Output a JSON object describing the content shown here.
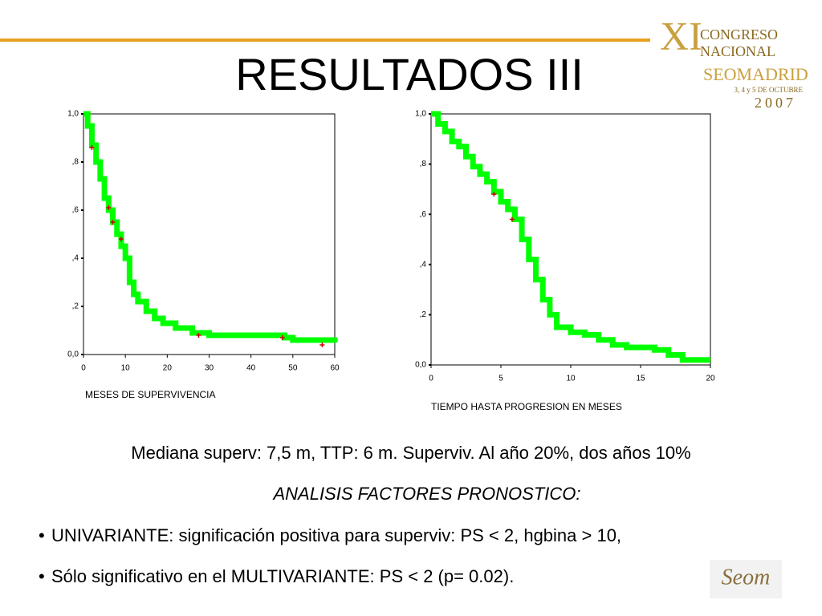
{
  "title": "RESULTADOS III",
  "logo": {
    "mark": "XI",
    "line1": "CONGRESO",
    "line2": "NACIONAL",
    "line3": "SEOMADRID",
    "line4": "3, 4 y 5 DE OCTUBRE",
    "line5": "2007"
  },
  "body": {
    "line1": "Mediana superv: 7,5 m, TTP: 6 m.  Superviv. Al año 20%,  dos años 10%",
    "line2": "ANALISIS FACTORES PRONOSTICO:",
    "bullets": [
      "UNIVARIANTE: significación positiva para superviv: PS < 2, hgbina > 10,",
      "Sólo significativo en el MULTIVARIANTE:  PS < 2 (p= 0.02)."
    ]
  },
  "footer_logo": "Seom",
  "chart_data": [
    {
      "type": "step",
      "xlabel": "MESES DE SUPERVIVENCIA",
      "xlim": [
        0,
        60
      ],
      "xticks": [
        0,
        10,
        20,
        30,
        40,
        50,
        60
      ],
      "ylim": [
        0,
        1
      ],
      "yticks": [
        {
          "value": 0,
          "label": "0,0"
        },
        {
          "value": 0.2,
          "label": ",2"
        },
        {
          "value": 0.4,
          "label": ",4"
        },
        {
          "value": 0.6,
          "label": ",6"
        },
        {
          "value": 0.8,
          "label": ",8"
        },
        {
          "value": 1,
          "label": "1,0"
        }
      ],
      "series": [
        {
          "color": "#00ff00",
          "x": [
            0,
            1,
            2,
            3,
            4,
            5,
            6,
            7,
            8,
            9,
            10,
            11,
            12,
            13,
            15,
            17,
            19,
            22,
            26,
            30,
            40,
            48,
            50,
            55,
            60
          ],
          "values": [
            1.0,
            0.95,
            0.87,
            0.8,
            0.73,
            0.65,
            0.6,
            0.55,
            0.5,
            0.45,
            0.4,
            0.3,
            0.25,
            0.22,
            0.18,
            0.15,
            0.13,
            0.11,
            0.09,
            0.08,
            0.08,
            0.07,
            0.06,
            0.06,
            0.05
          ]
        }
      ],
      "censored": {
        "color": "#cc0000",
        "x": [
          2,
          6,
          7,
          9,
          27.5,
          47.5,
          57
        ],
        "values": [
          0.86,
          0.61,
          0.55,
          0.48,
          0.08,
          0.07,
          0.04
        ]
      }
    },
    {
      "type": "step",
      "xlabel": "TIEMPO HASTA PROGRESION EN MESES",
      "xlim": [
        0,
        20
      ],
      "xticks": [
        0,
        5,
        10,
        15,
        20
      ],
      "ylim": [
        0,
        1
      ],
      "yticks": [
        {
          "value": 0,
          "label": "0,0"
        },
        {
          "value": 0.2,
          "label": ",2"
        },
        {
          "value": 0.4,
          "label": ",4"
        },
        {
          "value": 0.6,
          "label": ",6"
        },
        {
          "value": 0.8,
          "label": ",8"
        },
        {
          "value": 1,
          "label": "1,0"
        }
      ],
      "series": [
        {
          "color": "#00ff00",
          "x": [
            0,
            0.5,
            1,
            1.5,
            2,
            2.5,
            3,
            3.5,
            4,
            4.5,
            5,
            5.5,
            6,
            6.5,
            7,
            7.5,
            8,
            8.5,
            9,
            10,
            11,
            12,
            13,
            14,
            15,
            16,
            17,
            18,
            20
          ],
          "values": [
            1.0,
            0.96,
            0.93,
            0.89,
            0.87,
            0.83,
            0.79,
            0.76,
            0.73,
            0.69,
            0.65,
            0.62,
            0.58,
            0.5,
            0.42,
            0.34,
            0.26,
            0.2,
            0.15,
            0.13,
            0.12,
            0.1,
            0.08,
            0.07,
            0.07,
            0.06,
            0.04,
            0.02,
            0.02
          ]
        }
      ],
      "censored": {
        "color": "#cc0000",
        "x": [
          4.5,
          5.8
        ],
        "values": [
          0.68,
          0.58
        ]
      }
    }
  ]
}
